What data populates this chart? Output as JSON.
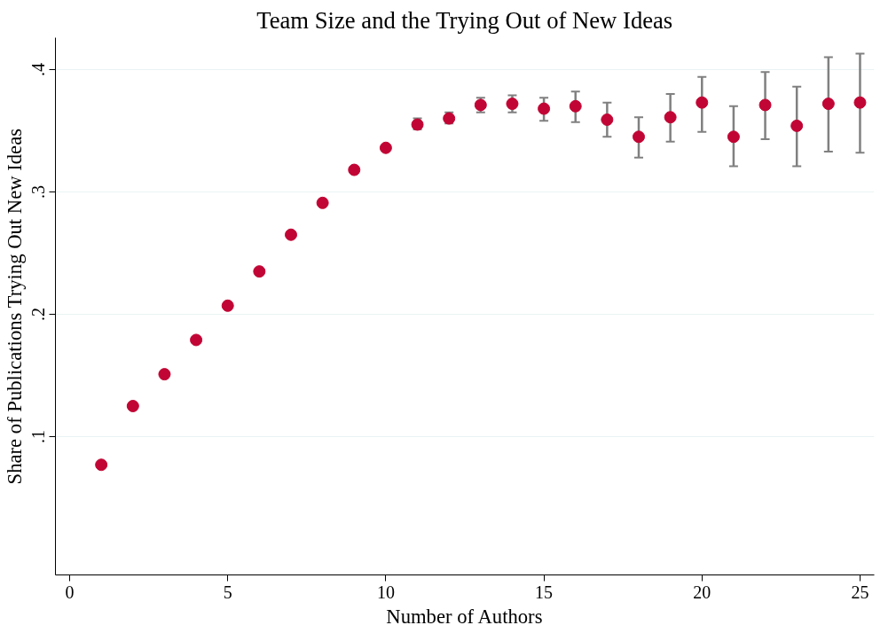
{
  "chart_data": {
    "type": "scatter",
    "title": "Team Size and the Trying Out of New Ideas",
    "xlabel": "Number of Authors",
    "ylabel": "Share of Publications Trying Out New Ideas",
    "x": [
      1,
      2,
      3,
      4,
      5,
      6,
      7,
      8,
      9,
      10,
      11,
      12,
      13,
      14,
      15,
      16,
      17,
      18,
      19,
      20,
      21,
      22,
      23,
      24,
      25
    ],
    "series": [
      {
        "color": "#c10534",
        "values": [
          0.077,
          0.125,
          0.151,
          0.179,
          0.207,
          0.235,
          0.265,
          0.291,
          0.318,
          0.336,
          0.355,
          0.36,
          0.371,
          0.372,
          0.368,
          0.37,
          0.359,
          0.345,
          0.361,
          0.373,
          0.345,
          0.371,
          0.354,
          0.372,
          0.373
        ],
        "errors": [
          null,
          null,
          null,
          null,
          null,
          null,
          null,
          null,
          null,
          null,
          [
            0.351,
            0.36
          ],
          [
            0.356,
            0.365
          ],
          [
            0.365,
            0.377
          ],
          [
            0.365,
            0.379
          ],
          [
            0.358,
            0.377
          ],
          [
            0.357,
            0.382
          ],
          [
            0.345,
            0.373
          ],
          [
            0.328,
            0.361
          ],
          [
            0.341,
            0.38
          ],
          [
            0.349,
            0.394
          ],
          [
            0.321,
            0.37
          ],
          [
            0.343,
            0.398
          ],
          [
            0.321,
            0.386
          ],
          [
            0.333,
            0.41
          ],
          [
            0.332,
            0.413
          ]
        ]
      }
    ],
    "xlim": [
      -0.45,
      25.45
    ],
    "ylim": [
      -0.013,
      0.426
    ],
    "xticks": [
      0,
      5,
      10,
      15,
      20,
      25
    ],
    "yticks": [
      {
        "value": 0.1,
        "label": ".1"
      },
      {
        "value": 0.2,
        "label": ".2"
      },
      {
        "value": 0.3,
        "label": ".3"
      },
      {
        "value": 0.4,
        "label": ".4"
      }
    ],
    "grid": "y",
    "marker": "circle"
  }
}
